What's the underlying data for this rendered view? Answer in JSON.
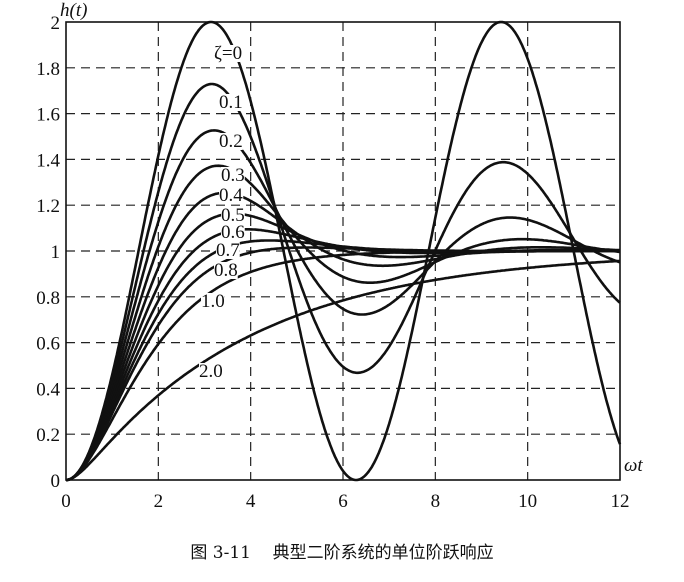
{
  "chart_data": {
    "type": "line",
    "title": "",
    "xlabel": "ωt",
    "ylabel": "h(t)",
    "xlim": [
      0,
      12
    ],
    "ylim": [
      0,
      2
    ],
    "xticks": [
      "0",
      "2",
      "4",
      "6",
      "8",
      "10",
      "12"
    ],
    "yticks": [
      "0",
      "0.2",
      "0.4",
      "0.6",
      "0.8",
      "1",
      "1.2",
      "1.4",
      "1.6",
      "1.8",
      "2"
    ],
    "grid": true,
    "grid_style": "dashed",
    "curve": "unit step response of second-order system h(t) vs ωt, parameterised by damping ratio ζ",
    "series": [
      {
        "name": "ζ=0",
        "zeta": 0
      },
      {
        "name": "0.1",
        "zeta": 0.1
      },
      {
        "name": "0.2",
        "zeta": 0.2
      },
      {
        "name": "0.3",
        "zeta": 0.3
      },
      {
        "name": "0.4",
        "zeta": 0.4
      },
      {
        "name": "0.5",
        "zeta": 0.5
      },
      {
        "name": "0.6",
        "zeta": 0.6
      },
      {
        "name": "0.7",
        "zeta": 0.7
      },
      {
        "name": "0.8",
        "zeta": 0.8
      },
      {
        "name": "1.0",
        "zeta": 1.0
      },
      {
        "name": "2.0",
        "zeta": 2.0
      }
    ],
    "line_color": "#111111"
  },
  "caption": "图 3-11    典型二阶系统的单位阶跃响应"
}
